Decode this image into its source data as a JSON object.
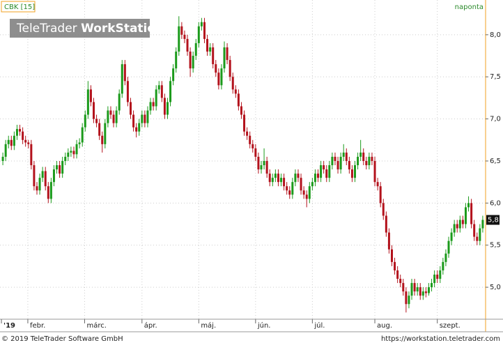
{
  "chart_data": {
    "type": "candlestick",
    "label": "CBK [15]",
    "interval": "naponta",
    "watermark": [
      "TeleTrader",
      "WorkStation"
    ],
    "footer_left": "© 2019 TeleTrader Software GmbH",
    "footer_right": "https://workstation.teletrader.com",
    "last_price": {
      "value": 5.8,
      "label": "5,8"
    },
    "up_color": "#1b9a1b",
    "down_color": "#b3121c",
    "grid": true,
    "ylim": [
      4.62,
      8.33
    ],
    "yticks": [
      {
        "value": 5,
        "label": "5,0"
      },
      {
        "value": 5.5,
        "label": "5,5"
      },
      {
        "value": 6,
        "label": "6,0"
      },
      {
        "value": 6.5,
        "label": "6,5"
      },
      {
        "value": 7,
        "label": "7,0"
      },
      {
        "value": 7.5,
        "label": "7,5"
      },
      {
        "value": 8,
        "label": "8,0"
      }
    ],
    "xlim": [
      -1,
      170
    ],
    "xticks": [
      {
        "value": -0.5,
        "label": "'19"
      },
      {
        "value": 8.8,
        "label": "febr."
      },
      {
        "value": 28.8,
        "label": "márc."
      },
      {
        "value": 49,
        "label": "ápr."
      },
      {
        "value": 69,
        "label": "máj."
      },
      {
        "value": 89,
        "label": "jún."
      },
      {
        "value": 109,
        "label": "júl."
      },
      {
        "value": 131,
        "label": "aug."
      },
      {
        "value": 153,
        "label": "szept."
      }
    ],
    "series": [
      {
        "name": "CBK",
        "values": [
          [
            6.5,
            6.6,
            6.45,
            6.55
          ],
          [
            6.55,
            6.75,
            6.5,
            6.7
          ],
          [
            6.7,
            6.8,
            6.65,
            6.75
          ],
          [
            6.75,
            6.8,
            6.63,
            6.68
          ],
          [
            6.68,
            6.85,
            6.63,
            6.8
          ],
          [
            6.8,
            6.93,
            6.75,
            6.88
          ],
          [
            6.88,
            6.93,
            6.8,
            6.85
          ],
          [
            6.85,
            6.9,
            6.7,
            6.75
          ],
          [
            6.75,
            6.8,
            6.67,
            6.72
          ],
          [
            6.72,
            6.75,
            6.65,
            6.7
          ],
          [
            6.7,
            6.75,
            6.4,
            6.45
          ],
          [
            6.45,
            6.5,
            6.15,
            6.2
          ],
          [
            6.2,
            6.25,
            6.1,
            6.15
          ],
          [
            6.15,
            6.35,
            6.1,
            6.3
          ],
          [
            6.3,
            6.43,
            6.25,
            6.38
          ],
          [
            6.38,
            6.43,
            6.15,
            6.2
          ],
          [
            6.2,
            6.25,
            6.0,
            6.05
          ],
          [
            6.05,
            6.3,
            6.0,
            6.25
          ],
          [
            6.25,
            6.45,
            6.2,
            6.4
          ],
          [
            6.4,
            6.5,
            6.35,
            6.45
          ],
          [
            6.45,
            6.5,
            6.3,
            6.35
          ],
          [
            6.35,
            6.55,
            6.3,
            6.5
          ],
          [
            6.5,
            6.6,
            6.45,
            6.55
          ],
          [
            6.55,
            6.65,
            6.5,
            6.6
          ],
          [
            6.6,
            6.67,
            6.55,
            6.62
          ],
          [
            6.62,
            6.67,
            6.53,
            6.58
          ],
          [
            6.58,
            6.75,
            6.53,
            6.7
          ],
          [
            6.7,
            6.77,
            6.65,
            6.72
          ],
          [
            6.72,
            6.95,
            6.67,
            6.9
          ],
          [
            6.9,
            7.1,
            6.85,
            7.05
          ],
          [
            7.05,
            7.45,
            7.0,
            7.35
          ],
          [
            7.35,
            7.4,
            7.15,
            7.2
          ],
          [
            7.2,
            7.25,
            6.95,
            7.0
          ],
          [
            7.0,
            7.05,
            6.9,
            6.95
          ],
          [
            6.95,
            7.0,
            6.75,
            6.8
          ],
          [
            6.8,
            6.85,
            6.6,
            6.7
          ],
          [
            6.7,
            7.0,
            6.65,
            6.95
          ],
          [
            6.95,
            7.15,
            6.9,
            7.1
          ],
          [
            7.1,
            7.15,
            7.0,
            7.05
          ],
          [
            7.05,
            7.1,
            6.9,
            6.95
          ],
          [
            6.95,
            7.15,
            6.9,
            7.1
          ],
          [
            7.1,
            7.35,
            7.05,
            7.3
          ],
          [
            7.3,
            7.7,
            7.25,
            7.65
          ],
          [
            7.65,
            7.7,
            7.4,
            7.45
          ],
          [
            7.45,
            7.5,
            7.15,
            7.2
          ],
          [
            7.2,
            7.25,
            7.0,
            7.05
          ],
          [
            7.05,
            7.1,
            6.85,
            6.9
          ],
          [
            6.9,
            6.95,
            6.78,
            6.85
          ],
          [
            6.85,
            7.0,
            6.8,
            6.95
          ],
          [
            6.95,
            7.1,
            6.9,
            7.05
          ],
          [
            7.05,
            7.1,
            6.9,
            6.95
          ],
          [
            6.95,
            7.15,
            6.9,
            7.1
          ],
          [
            7.1,
            7.25,
            7.05,
            7.2
          ],
          [
            7.2,
            7.25,
            7.1,
            7.15
          ],
          [
            7.15,
            7.4,
            7.1,
            7.35
          ],
          [
            7.35,
            7.45,
            7.3,
            7.4
          ],
          [
            7.4,
            7.45,
            7.2,
            7.25
          ],
          [
            7.25,
            7.3,
            7.0,
            7.05
          ],
          [
            7.05,
            7.25,
            7.0,
            7.2
          ],
          [
            7.2,
            7.5,
            7.15,
            7.45
          ],
          [
            7.45,
            7.65,
            7.4,
            7.6
          ],
          [
            7.6,
            7.85,
            7.55,
            7.8
          ],
          [
            7.8,
            8.22,
            7.75,
            8.1
          ],
          [
            8.1,
            8.15,
            7.95,
            8.0
          ],
          [
            8.0,
            8.05,
            7.9,
            7.95
          ],
          [
            7.95,
            8.0,
            7.75,
            7.8
          ],
          [
            7.8,
            7.85,
            7.5,
            7.6
          ],
          [
            7.6,
            7.8,
            7.55,
            7.75
          ],
          [
            7.75,
            7.95,
            7.7,
            7.9
          ],
          [
            7.9,
            8.15,
            7.85,
            8.1
          ],
          [
            8.1,
            8.2,
            8.05,
            8.15
          ],
          [
            8.15,
            8.2,
            7.9,
            7.95
          ],
          [
            7.95,
            8.0,
            7.75,
            7.8
          ],
          [
            7.8,
            7.9,
            7.75,
            7.85
          ],
          [
            7.85,
            7.9,
            7.6,
            7.65
          ],
          [
            7.65,
            7.7,
            7.5,
            7.55
          ],
          [
            7.55,
            7.6,
            7.35,
            7.4
          ],
          [
            7.4,
            7.65,
            7.35,
            7.6
          ],
          [
            7.6,
            7.92,
            7.55,
            7.85
          ],
          [
            7.85,
            7.9,
            7.65,
            7.7
          ],
          [
            7.7,
            7.75,
            7.45,
            7.5
          ],
          [
            7.5,
            7.55,
            7.3,
            7.35
          ],
          [
            7.35,
            7.4,
            7.25,
            7.3
          ],
          [
            7.3,
            7.35,
            7.1,
            7.15
          ],
          [
            7.15,
            7.2,
            7.0,
            7.05
          ],
          [
            7.05,
            7.1,
            6.8,
            6.85
          ],
          [
            6.85,
            6.9,
            6.75,
            6.8
          ],
          [
            6.8,
            6.85,
            6.65,
            6.7
          ],
          [
            6.7,
            6.75,
            6.6,
            6.65
          ],
          [
            6.65,
            6.7,
            6.5,
            6.55
          ],
          [
            6.55,
            6.6,
            6.35,
            6.4
          ],
          [
            6.4,
            6.5,
            6.35,
            6.45
          ],
          [
            6.45,
            6.65,
            6.4,
            6.5
          ],
          [
            6.5,
            6.55,
            6.3,
            6.35
          ],
          [
            6.35,
            6.4,
            6.2,
            6.25
          ],
          [
            6.25,
            6.35,
            6.2,
            6.3
          ],
          [
            6.3,
            6.4,
            6.25,
            6.35
          ],
          [
            6.35,
            6.4,
            6.2,
            6.25
          ],
          [
            6.25,
            6.35,
            6.2,
            6.3
          ],
          [
            6.3,
            6.35,
            6.15,
            6.2
          ],
          [
            6.2,
            6.25,
            6.1,
            6.15
          ],
          [
            6.15,
            6.2,
            6.05,
            6.1
          ],
          [
            6.1,
            6.3,
            6.05,
            6.25
          ],
          [
            6.25,
            6.4,
            6.2,
            6.35
          ],
          [
            6.35,
            6.4,
            6.25,
            6.3
          ],
          [
            6.3,
            6.35,
            6.1,
            6.15
          ],
          [
            6.15,
            6.2,
            6.05,
            6.1
          ],
          [
            6.1,
            6.15,
            5.95,
            6.05
          ],
          [
            6.05,
            6.25,
            6.0,
            6.2
          ],
          [
            6.2,
            6.3,
            6.15,
            6.25
          ],
          [
            6.25,
            6.4,
            6.2,
            6.35
          ],
          [
            6.35,
            6.4,
            6.25,
            6.3
          ],
          [
            6.3,
            6.5,
            6.25,
            6.45
          ],
          [
            6.45,
            6.5,
            6.35,
            6.4
          ],
          [
            6.4,
            6.45,
            6.25,
            6.3
          ],
          [
            6.3,
            6.5,
            6.25,
            6.45
          ],
          [
            6.45,
            6.6,
            6.4,
            6.55
          ],
          [
            6.55,
            6.6,
            6.45,
            6.5
          ],
          [
            6.5,
            6.55,
            6.35,
            6.4
          ],
          [
            6.4,
            6.6,
            6.35,
            6.55
          ],
          [
            6.55,
            6.7,
            6.5,
            6.6
          ],
          [
            6.6,
            6.65,
            6.45,
            6.5
          ],
          [
            6.5,
            6.55,
            6.35,
            6.4
          ],
          [
            6.4,
            6.45,
            6.25,
            6.3
          ],
          [
            6.3,
            6.5,
            6.25,
            6.45
          ],
          [
            6.45,
            6.6,
            6.4,
            6.55
          ],
          [
            6.55,
            6.75,
            6.5,
            6.6
          ],
          [
            6.6,
            6.65,
            6.45,
            6.5
          ],
          [
            6.5,
            6.55,
            6.4,
            6.45
          ],
          [
            6.45,
            6.6,
            6.4,
            6.55
          ],
          [
            6.55,
            6.6,
            6.45,
            6.5
          ],
          [
            6.5,
            6.55,
            6.2,
            6.25
          ],
          [
            6.25,
            6.3,
            6.15,
            6.2
          ],
          [
            6.2,
            6.25,
            5.95,
            6.0
          ],
          [
            6.0,
            6.05,
            5.8,
            5.85
          ],
          [
            5.85,
            5.9,
            5.6,
            5.65
          ],
          [
            5.65,
            5.7,
            5.4,
            5.45
          ],
          [
            5.45,
            5.5,
            5.25,
            5.3
          ],
          [
            5.3,
            5.35,
            5.15,
            5.2
          ],
          [
            5.2,
            5.25,
            5.05,
            5.1
          ],
          [
            5.1,
            5.15,
            5.0,
            5.05
          ],
          [
            5.05,
            5.1,
            4.9,
            4.95
          ],
          [
            4.95,
            5.0,
            4.7,
            4.8
          ],
          [
            4.8,
            4.95,
            4.75,
            4.9
          ],
          [
            4.9,
            5.1,
            4.85,
            5.05
          ],
          [
            5.05,
            5.1,
            4.9,
            4.95
          ],
          [
            4.95,
            5.05,
            4.9,
            5.0
          ],
          [
            5.0,
            5.05,
            4.85,
            4.9
          ],
          [
            4.9,
            5.0,
            4.85,
            4.95
          ],
          [
            4.95,
            5.0,
            4.88,
            4.93
          ],
          [
            4.93,
            5.05,
            4.9,
            5.0
          ],
          [
            5.0,
            5.1,
            4.95,
            5.05
          ],
          [
            5.05,
            5.2,
            5.0,
            5.15
          ],
          [
            5.15,
            5.2,
            5.05,
            5.1
          ],
          [
            5.1,
            5.25,
            5.05,
            5.2
          ],
          [
            5.2,
            5.35,
            5.15,
            5.3
          ],
          [
            5.3,
            5.45,
            5.25,
            5.4
          ],
          [
            5.4,
            5.6,
            5.35,
            5.55
          ],
          [
            5.55,
            5.7,
            5.5,
            5.65
          ],
          [
            5.65,
            5.8,
            5.6,
            5.75
          ],
          [
            5.75,
            5.8,
            5.65,
            5.7
          ],
          [
            5.7,
            5.85,
            5.65,
            5.8
          ],
          [
            5.8,
            5.85,
            5.7,
            5.75
          ],
          [
            5.75,
            6.0,
            5.7,
            5.95
          ],
          [
            5.95,
            6.08,
            5.9,
            6.0
          ],
          [
            6.0,
            6.05,
            5.7,
            5.75
          ],
          [
            5.75,
            5.8,
            5.55,
            5.6
          ],
          [
            5.6,
            5.65,
            5.5,
            5.55
          ],
          [
            5.55,
            5.75,
            5.5,
            5.7
          ],
          [
            5.7,
            5.85,
            5.65,
            5.8
          ]
        ]
      }
    ]
  }
}
